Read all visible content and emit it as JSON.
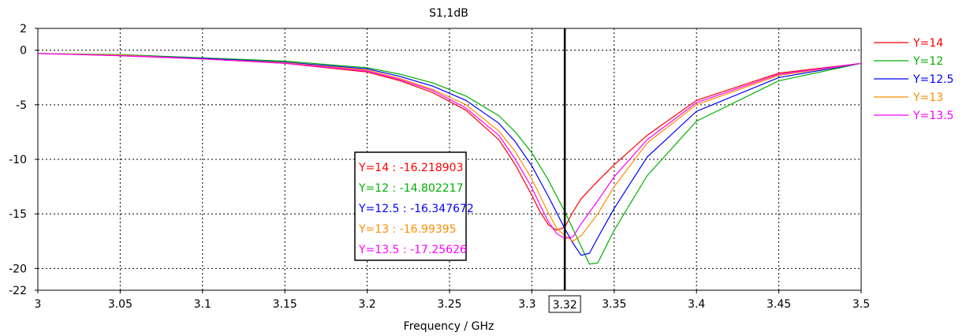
{
  "chart_data": {
    "type": "line",
    "title": "S1,1dB",
    "xlabel": "Frequency / GHz",
    "ylabel": "",
    "xlim": [
      3,
      3.5
    ],
    "ylim": [
      -22,
      2
    ],
    "grid": true,
    "legend_position": "right",
    "x_ticks": [
      {
        "value": 3,
        "label": "3"
      },
      {
        "value": 3.05,
        "label": "3.05"
      },
      {
        "value": 3.1,
        "label": "3.1"
      },
      {
        "value": 3.15,
        "label": "3.15"
      },
      {
        "value": 3.2,
        "label": "3.2"
      },
      {
        "value": 3.25,
        "label": "3.25"
      },
      {
        "value": 3.3,
        "label": "3.3"
      },
      {
        "value": 3.35,
        "label": "3.35"
      },
      {
        "value": 3.4,
        "label": "3.4"
      },
      {
        "value": 3.45,
        "label": "3.45"
      },
      {
        "value": 3.5,
        "label": "3.5"
      }
    ],
    "y_ticks": [
      {
        "value": 2,
        "label": "2"
      },
      {
        "value": 0,
        "label": "0"
      },
      {
        "value": -5,
        "label": "-5"
      },
      {
        "value": -10,
        "label": "-10"
      },
      {
        "value": -15,
        "label": "-15"
      },
      {
        "value": -20,
        "label": "-20"
      },
      {
        "value": -22,
        "label": "-22"
      }
    ],
    "marker": {
      "x": 3.32,
      "label": "3.32"
    },
    "series": [
      {
        "name": "Y=14",
        "color": "#ff0000",
        "x": [
          3,
          3.05,
          3.1,
          3.15,
          3.2,
          3.22,
          3.24,
          3.26,
          3.28,
          3.29,
          3.3,
          3.305,
          3.31,
          3.315,
          3.32,
          3.325,
          3.33,
          3.34,
          3.35,
          3.37,
          3.4,
          3.45,
          3.5
        ],
        "values": [
          -0.3,
          -0.5,
          -0.8,
          -1.2,
          -2.0,
          -2.8,
          -3.9,
          -5.5,
          -8.2,
          -10.5,
          -13.3,
          -14.8,
          -16.0,
          -16.5,
          -16.22,
          -14.8,
          -13.6,
          -12.0,
          -10.5,
          -7.8,
          -4.6,
          -2.1,
          -1.2
        ]
      },
      {
        "name": "Y=12",
        "color": "#00b000",
        "x": [
          3,
          3.05,
          3.1,
          3.15,
          3.2,
          3.22,
          3.24,
          3.26,
          3.28,
          3.29,
          3.3,
          3.31,
          3.32,
          3.325,
          3.33,
          3.335,
          3.34,
          3.35,
          3.37,
          3.4,
          3.45,
          3.5
        ],
        "values": [
          -0.3,
          -0.4,
          -0.7,
          -1.0,
          -1.6,
          -2.2,
          -3.0,
          -4.2,
          -6.0,
          -7.5,
          -9.4,
          -11.9,
          -14.8,
          -16.4,
          -18.0,
          -19.6,
          -19.5,
          -16.5,
          -11.5,
          -6.5,
          -2.8,
          -1.2
        ]
      },
      {
        "name": "Y=12.5",
        "color": "#0000ff",
        "x": [
          3,
          3.05,
          3.1,
          3.15,
          3.2,
          3.22,
          3.24,
          3.26,
          3.28,
          3.29,
          3.3,
          3.31,
          3.32,
          3.325,
          3.33,
          3.335,
          3.34,
          3.35,
          3.37,
          3.4,
          3.45,
          3.5
        ],
        "values": [
          -0.3,
          -0.45,
          -0.75,
          -1.1,
          -1.7,
          -2.4,
          -3.3,
          -4.6,
          -6.7,
          -8.4,
          -10.6,
          -13.4,
          -16.35,
          -17.7,
          -18.8,
          -18.6,
          -17.2,
          -14.5,
          -9.8,
          -5.6,
          -2.5,
          -1.2
        ]
      },
      {
        "name": "Y=13",
        "color": "#ff8c00",
        "x": [
          3,
          3.05,
          3.1,
          3.15,
          3.2,
          3.22,
          3.24,
          3.26,
          3.28,
          3.29,
          3.3,
          3.31,
          3.315,
          3.32,
          3.325,
          3.33,
          3.34,
          3.35,
          3.37,
          3.4,
          3.45,
          3.5
        ],
        "values": [
          -0.3,
          -0.45,
          -0.8,
          -1.15,
          -1.8,
          -2.6,
          -3.6,
          -5.0,
          -7.4,
          -9.3,
          -11.8,
          -14.9,
          -16.3,
          -17.0,
          -17.5,
          -17.0,
          -15.0,
          -12.5,
          -8.5,
          -5.0,
          -2.3,
          -1.2
        ]
      },
      {
        "name": "Y=13.5",
        "color": "#ff00ff",
        "x": [
          3,
          3.05,
          3.1,
          3.15,
          3.2,
          3.22,
          3.24,
          3.26,
          3.28,
          3.29,
          3.3,
          3.305,
          3.31,
          3.315,
          3.32,
          3.325,
          3.33,
          3.34,
          3.35,
          3.37,
          3.4,
          3.45,
          3.5
        ],
        "values": [
          -0.3,
          -0.5,
          -0.8,
          -1.2,
          -1.9,
          -2.7,
          -3.7,
          -5.3,
          -7.8,
          -10.0,
          -12.6,
          -14.2,
          -15.7,
          -16.8,
          -17.26,
          -17.1,
          -15.9,
          -13.8,
          -11.6,
          -8.2,
          -4.8,
          -2.2,
          -1.2
        ]
      }
    ],
    "annotation": {
      "entries": [
        {
          "text": "Y=14 : -16.218903",
          "color": "#ff0000"
        },
        {
          "text": "Y=12 : -14.802217",
          "color": "#00b000"
        },
        {
          "text": "Y=12.5 : -16.347672",
          "color": "#0000ff"
        },
        {
          "text": "Y=13 : -16.99395",
          "color": "#ff8c00"
        },
        {
          "text": "Y=13.5 : -17.25626",
          "color": "#ff00ff"
        }
      ]
    }
  }
}
